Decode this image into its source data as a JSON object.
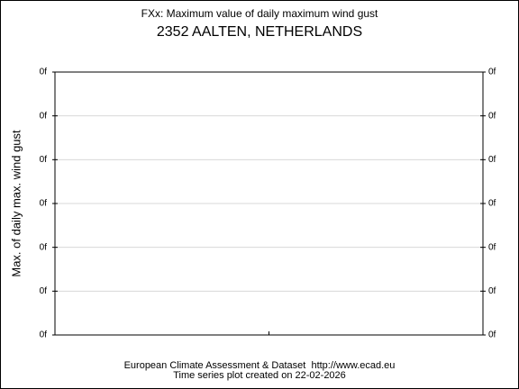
{
  "chart_data": {
    "type": "line",
    "title": "FXx: Maximum value of daily maximum wind gust",
    "subtitle": "2352 AALTEN, NETHERLANDS",
    "ylabel": "Max. of daily max. wind gust",
    "yticks": [
      "0f",
      "0f",
      "0f",
      "0f",
      "0f",
      "0f",
      "0f"
    ],
    "y2ticks": [
      "0f",
      "0f",
      "0f",
      "0f",
      "0f",
      "0f",
      "0f"
    ],
    "series": [],
    "grid": true,
    "footer": [
      "European Climate Assessment & Dataset  http://www.ecad.eu",
      "Time series plot created on 22-02-2026"
    ]
  }
}
